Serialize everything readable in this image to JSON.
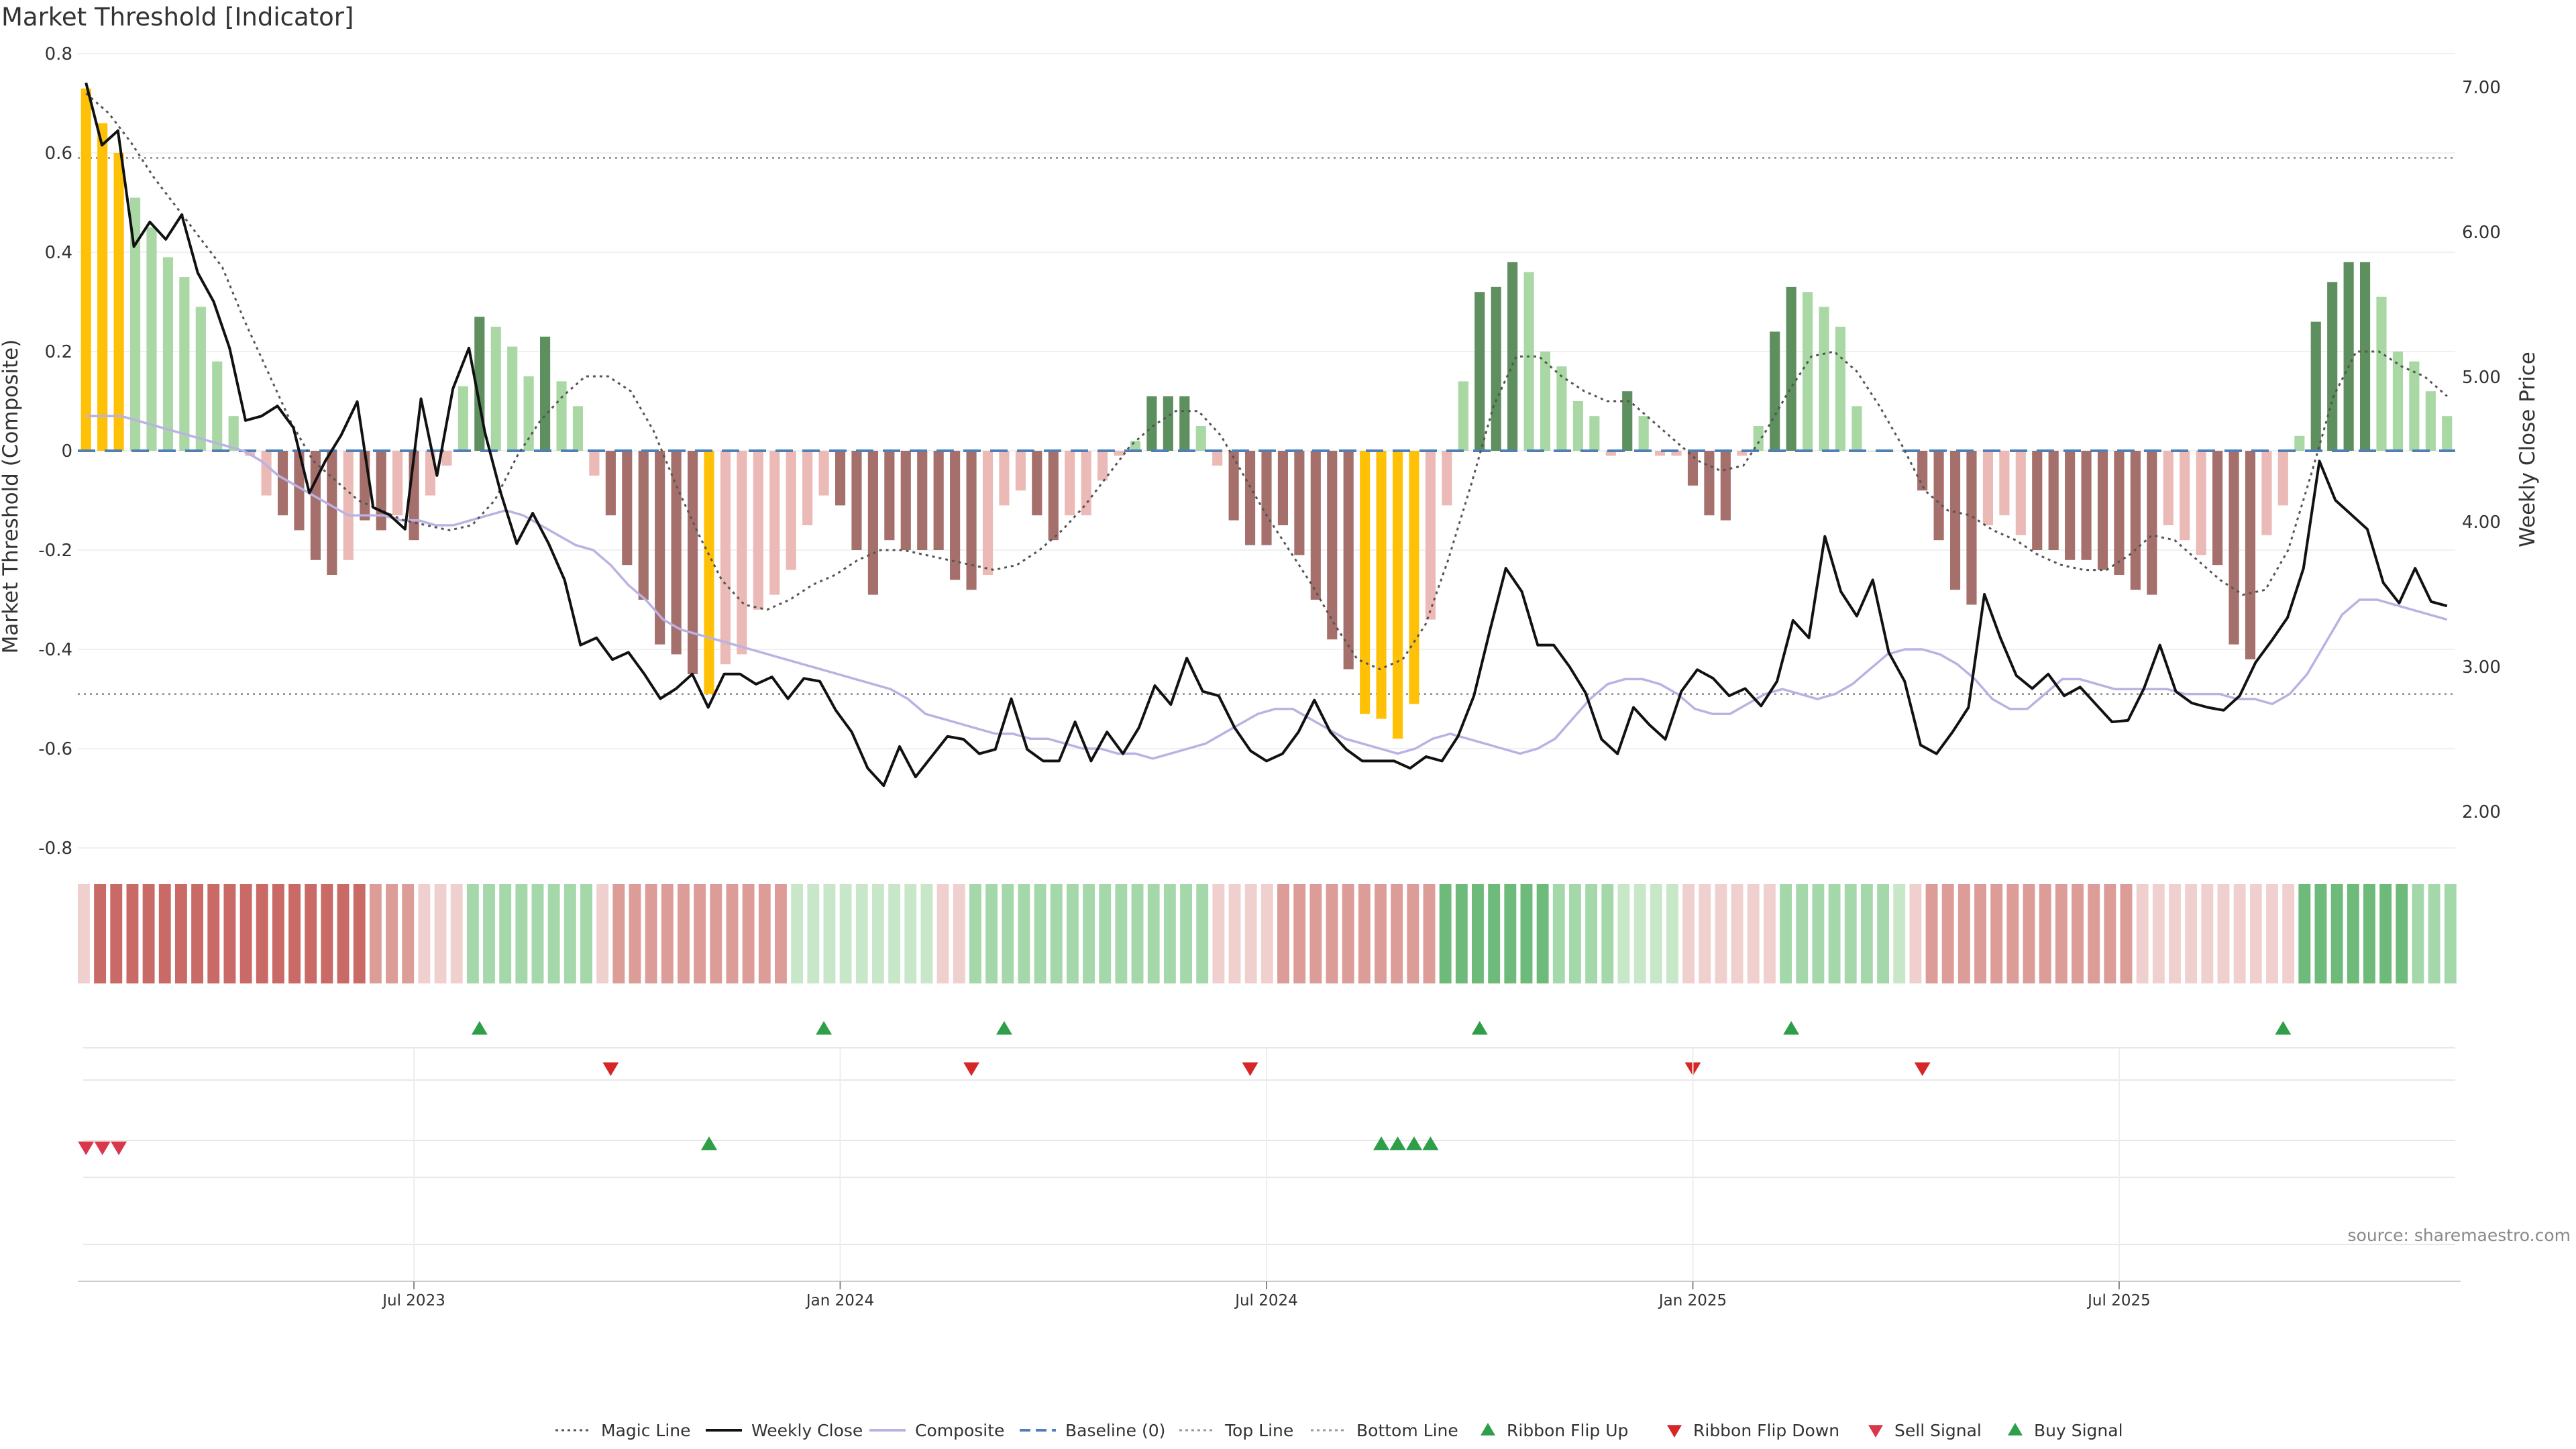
{
  "chart_data": {
    "type": "bar",
    "title": "Market Threshold [Indicator]",
    "ylabel_left": "Market Threshold (Composite)",
    "ylabel_right": "Weekly Close Price",
    "left_ylim": [
      -0.85,
      0.8
    ],
    "right_ylim": [
      1.6,
      7.2
    ],
    "left_ticks": [
      "0.8",
      "0.6",
      "0.4",
      "0.2",
      "0",
      "-0.2",
      "-0.4",
      "-0.6",
      "-0.8"
    ],
    "right_ticks": [
      "7.00",
      "6.00",
      "5.00",
      "4.00",
      "3.00",
      "2.00"
    ],
    "x_ticks": [
      {
        "label": "Jul 2023",
        "index": 20
      },
      {
        "label": "Jan 2024",
        "index": 46
      },
      {
        "label": "Jul 2024",
        "index": 72
      },
      {
        "label": "Jan 2025",
        "index": 98
      },
      {
        "label": "Jul 2025",
        "index": 124
      }
    ],
    "top_line": 0.59,
    "bottom_line": -0.49,
    "source": "source: sharemaestro.com",
    "colors": {
      "yellow": "#FFC107",
      "light_green": "#A9D8A4",
      "dark_green": "#5E8F5E",
      "light_red": "#EBBAB6",
      "dark_red": "#A56F6C",
      "weekly_close": "#111111",
      "composite": "#B9B2E2",
      "magic_line": "#555555",
      "baseline": "#4F7FB5",
      "ribbon_flip_up": "#2E9E48",
      "ribbon_flip_down": "#D62728",
      "sell_signal": "#D9384C",
      "buy_signal": "#2E9E48"
    },
    "composite_bars": [
      {
        "v": 0.73,
        "c": "Y"
      },
      {
        "v": 0.66,
        "c": "Y"
      },
      {
        "v": 0.6,
        "c": "Y"
      },
      {
        "v": 0.51,
        "c": "LG"
      },
      {
        "v": 0.45,
        "c": "LG"
      },
      {
        "v": 0.39,
        "c": "LG"
      },
      {
        "v": 0.35,
        "c": "LG"
      },
      {
        "v": 0.29,
        "c": "LG"
      },
      {
        "v": 0.18,
        "c": "LG"
      },
      {
        "v": 0.07,
        "c": "LG"
      },
      {
        "v": -0.01,
        "c": "LR"
      },
      {
        "v": -0.09,
        "c": "LR"
      },
      {
        "v": -0.13,
        "c": "DR"
      },
      {
        "v": -0.16,
        "c": "DR"
      },
      {
        "v": -0.22,
        "c": "DR"
      },
      {
        "v": -0.25,
        "c": "DR"
      },
      {
        "v": -0.22,
        "c": "LR"
      },
      {
        "v": -0.14,
        "c": "DR"
      },
      {
        "v": -0.16,
        "c": "DR"
      },
      {
        "v": -0.13,
        "c": "LR"
      },
      {
        "v": -0.18,
        "c": "DR"
      },
      {
        "v": -0.09,
        "c": "LR"
      },
      {
        "v": -0.03,
        "c": "LR"
      },
      {
        "v": 0.13,
        "c": "LG"
      },
      {
        "v": 0.27,
        "c": "DG"
      },
      {
        "v": 0.25,
        "c": "LG"
      },
      {
        "v": 0.21,
        "c": "LG"
      },
      {
        "v": 0.15,
        "c": "LG"
      },
      {
        "v": 0.23,
        "c": "DG"
      },
      {
        "v": 0.14,
        "c": "LG"
      },
      {
        "v": 0.09,
        "c": "LG"
      },
      {
        "v": -0.05,
        "c": "LR"
      },
      {
        "v": -0.13,
        "c": "DR"
      },
      {
        "v": -0.23,
        "c": "DR"
      },
      {
        "v": -0.3,
        "c": "DR"
      },
      {
        "v": -0.39,
        "c": "DR"
      },
      {
        "v": -0.41,
        "c": "DR"
      },
      {
        "v": -0.45,
        "c": "DR"
      },
      {
        "v": -0.49,
        "c": "Y"
      },
      {
        "v": -0.43,
        "c": "LR"
      },
      {
        "v": -0.41,
        "c": "LR"
      },
      {
        "v": -0.32,
        "c": "LR"
      },
      {
        "v": -0.29,
        "c": "LR"
      },
      {
        "v": -0.24,
        "c": "LR"
      },
      {
        "v": -0.15,
        "c": "LR"
      },
      {
        "v": -0.09,
        "c": "LR"
      },
      {
        "v": -0.11,
        "c": "DR"
      },
      {
        "v": -0.2,
        "c": "DR"
      },
      {
        "v": -0.29,
        "c": "DR"
      },
      {
        "v": -0.18,
        "c": "DR"
      },
      {
        "v": -0.2,
        "c": "DR"
      },
      {
        "v": -0.2,
        "c": "DR"
      },
      {
        "v": -0.2,
        "c": "DR"
      },
      {
        "v": -0.26,
        "c": "DR"
      },
      {
        "v": -0.28,
        "c": "DR"
      },
      {
        "v": -0.25,
        "c": "LR"
      },
      {
        "v": -0.11,
        "c": "LR"
      },
      {
        "v": -0.08,
        "c": "LR"
      },
      {
        "v": -0.13,
        "c": "DR"
      },
      {
        "v": -0.18,
        "c": "DR"
      },
      {
        "v": -0.13,
        "c": "LR"
      },
      {
        "v": -0.13,
        "c": "LR"
      },
      {
        "v": -0.06,
        "c": "LR"
      },
      {
        "v": -0.01,
        "c": "LR"
      },
      {
        "v": 0.02,
        "c": "LG"
      },
      {
        "v": 0.11,
        "c": "DG"
      },
      {
        "v": 0.11,
        "c": "DG"
      },
      {
        "v": 0.11,
        "c": "DG"
      },
      {
        "v": 0.05,
        "c": "LG"
      },
      {
        "v": -0.03,
        "c": "LR"
      },
      {
        "v": -0.14,
        "c": "DR"
      },
      {
        "v": -0.19,
        "c": "DR"
      },
      {
        "v": -0.19,
        "c": "DR"
      },
      {
        "v": -0.15,
        "c": "DR"
      },
      {
        "v": -0.21,
        "c": "DR"
      },
      {
        "v": -0.3,
        "c": "DR"
      },
      {
        "v": -0.38,
        "c": "DR"
      },
      {
        "v": -0.44,
        "c": "DR"
      },
      {
        "v": -0.53,
        "c": "Y"
      },
      {
        "v": -0.54,
        "c": "Y"
      },
      {
        "v": -0.58,
        "c": "Y"
      },
      {
        "v": -0.51,
        "c": "Y"
      },
      {
        "v": -0.34,
        "c": "LR"
      },
      {
        "v": -0.11,
        "c": "LR"
      },
      {
        "v": 0.14,
        "c": "LG"
      },
      {
        "v": 0.32,
        "c": "DG"
      },
      {
        "v": 0.33,
        "c": "DG"
      },
      {
        "v": 0.38,
        "c": "DG"
      },
      {
        "v": 0.36,
        "c": "LG"
      },
      {
        "v": 0.2,
        "c": "LG"
      },
      {
        "v": 0.17,
        "c": "LG"
      },
      {
        "v": 0.1,
        "c": "LG"
      },
      {
        "v": 0.07,
        "c": "LG"
      },
      {
        "v": -0.01,
        "c": "LR"
      },
      {
        "v": 0.12,
        "c": "DG"
      },
      {
        "v": 0.07,
        "c": "LG"
      },
      {
        "v": -0.01,
        "c": "LR"
      },
      {
        "v": -0.01,
        "c": "LR"
      },
      {
        "v": -0.07,
        "c": "DR"
      },
      {
        "v": -0.13,
        "c": "DR"
      },
      {
        "v": -0.14,
        "c": "DR"
      },
      {
        "v": -0.01,
        "c": "LR"
      },
      {
        "v": 0.05,
        "c": "LG"
      },
      {
        "v": 0.24,
        "c": "DG"
      },
      {
        "v": 0.33,
        "c": "DG"
      },
      {
        "v": 0.32,
        "c": "LG"
      },
      {
        "v": 0.29,
        "c": "LG"
      },
      {
        "v": 0.25,
        "c": "LG"
      },
      {
        "v": 0.09,
        "c": "LG"
      },
      {
        "v": 0.0,
        "c": "LG"
      },
      {
        "v": 0.0,
        "c": "LG"
      },
      {
        "v": 0.0,
        "c": "LG"
      },
      {
        "v": -0.08,
        "c": "DR"
      },
      {
        "v": -0.18,
        "c": "DR"
      },
      {
        "v": -0.28,
        "c": "DR"
      },
      {
        "v": -0.31,
        "c": "DR"
      },
      {
        "v": -0.15,
        "c": "LR"
      },
      {
        "v": -0.13,
        "c": "LR"
      },
      {
        "v": -0.17,
        "c": "LR"
      },
      {
        "v": -0.2,
        "c": "DR"
      },
      {
        "v": -0.2,
        "c": "DR"
      },
      {
        "v": -0.22,
        "c": "DR"
      },
      {
        "v": -0.22,
        "c": "DR"
      },
      {
        "v": -0.24,
        "c": "DR"
      },
      {
        "v": -0.25,
        "c": "DR"
      },
      {
        "v": -0.28,
        "c": "DR"
      },
      {
        "v": -0.29,
        "c": "DR"
      },
      {
        "v": -0.15,
        "c": "LR"
      },
      {
        "v": -0.18,
        "c": "LR"
      },
      {
        "v": -0.21,
        "c": "LR"
      },
      {
        "v": -0.23,
        "c": "DR"
      },
      {
        "v": -0.39,
        "c": "DR"
      },
      {
        "v": -0.42,
        "c": "DR"
      },
      {
        "v": -0.17,
        "c": "LR"
      },
      {
        "v": -0.11,
        "c": "LR"
      },
      {
        "v": 0.03,
        "c": "LG"
      },
      {
        "v": 0.26,
        "c": "DG"
      },
      {
        "v": 0.34,
        "c": "DG"
      },
      {
        "v": 0.38,
        "c": "DG"
      },
      {
        "v": 0.38,
        "c": "DG"
      },
      {
        "v": 0.31,
        "c": "LG"
      },
      {
        "v": 0.2,
        "c": "LG"
      },
      {
        "v": 0.18,
        "c": "LG"
      },
      {
        "v": 0.12,
        "c": "LG"
      },
      {
        "v": 0.07,
        "c": "LG"
      }
    ],
    "weekly_close": [
      7.03,
      6.6,
      6.7,
      5.9,
      6.07,
      5.95,
      6.12,
      5.72,
      5.52,
      5.2,
      4.7,
      4.73,
      4.8,
      4.65,
      4.2,
      4.42,
      4.6,
      4.83,
      4.1,
      4.05,
      3.95,
      4.85,
      4.32,
      4.92,
      5.2,
      4.62,
      4.2,
      3.85,
      4.06,
      3.85,
      3.6,
      3.15,
      3.2,
      3.05,
      3.1,
      2.95,
      2.78,
      2.85,
      2.95,
      2.72,
      2.95,
      2.95,
      2.88,
      2.93,
      2.78,
      2.92,
      2.9,
      2.7,
      2.55,
      2.3,
      2.18,
      2.45,
      2.24,
      2.38,
      2.52,
      2.5,
      2.4,
      2.43,
      2.78,
      2.43,
      2.35,
      2.35,
      2.62,
      2.35,
      2.55,
      2.4,
      2.58,
      2.87,
      2.74,
      3.06,
      2.83,
      2.8,
      2.58,
      2.42,
      2.35,
      2.4,
      2.55,
      2.77,
      2.55,
      2.43,
      2.35,
      2.35,
      2.35,
      2.3,
      2.38,
      2.35,
      2.52,
      2.8,
      3.25,
      3.68,
      3.52,
      3.15,
      3.15,
      3.0,
      2.82,
      2.5,
      2.4,
      2.72,
      2.6,
      2.5,
      2.83,
      2.98,
      2.92,
      2.8,
      2.85,
      2.73,
      2.9,
      3.32,
      3.2,
      3.9,
      3.52,
      3.35,
      3.6,
      3.1,
      2.9,
      2.46,
      2.4,
      2.55,
      2.72,
      3.5,
      3.2,
      2.94,
      2.85,
      2.95,
      2.8,
      2.86,
      2.74,
      2.62,
      2.63,
      2.85,
      3.15,
      2.83,
      2.75,
      2.72,
      2.7,
      2.8,
      3.03,
      3.18,
      3.34,
      3.68,
      4.42,
      4.15,
      4.05,
      3.95,
      3.58,
      3.44,
      3.68,
      3.45,
      3.42
    ],
    "composite_line": [
      0.07,
      0.07,
      0.07,
      0.06,
      0.05,
      0.04,
      0.03,
      0.02,
      0.01,
      0.0,
      -0.02,
      -0.05,
      -0.07,
      -0.09,
      -0.11,
      -0.13,
      -0.13,
      -0.13,
      -0.14,
      -0.14,
      -0.15,
      -0.15,
      -0.14,
      -0.13,
      -0.12,
      -0.13,
      -0.15,
      -0.17,
      -0.19,
      -0.2,
      -0.23,
      -0.27,
      -0.3,
      -0.34,
      -0.36,
      -0.37,
      -0.38,
      -0.39,
      -0.4,
      -0.41,
      -0.42,
      -0.43,
      -0.44,
      -0.45,
      -0.46,
      -0.47,
      -0.48,
      -0.5,
      -0.53,
      -0.54,
      -0.55,
      -0.56,
      -0.57,
      -0.57,
      -0.58,
      -0.58,
      -0.59,
      -0.6,
      -0.6,
      -0.61,
      -0.61,
      -0.62,
      -0.61,
      -0.6,
      -0.59,
      -0.57,
      -0.55,
      -0.53,
      -0.52,
      -0.52,
      -0.54,
      -0.56,
      -0.58,
      -0.59,
      -0.6,
      -0.61,
      -0.6,
      -0.58,
      -0.57,
      -0.58,
      -0.59,
      -0.6,
      -0.61,
      -0.6,
      -0.58,
      -0.54,
      -0.5,
      -0.47,
      -0.46,
      -0.46,
      -0.47,
      -0.49,
      -0.52,
      -0.53,
      -0.53,
      -0.51,
      -0.49,
      -0.48,
      -0.49,
      -0.5,
      -0.49,
      -0.47,
      -0.44,
      -0.41,
      -0.4,
      -0.4,
      -0.41,
      -0.43,
      -0.46,
      -0.5,
      -0.52,
      -0.52,
      -0.49,
      -0.46,
      -0.46,
      -0.47,
      -0.48,
      -0.48,
      -0.48,
      -0.48,
      -0.49,
      -0.49,
      -0.49,
      -0.5,
      -0.5,
      -0.51,
      -0.49,
      -0.45,
      -0.39,
      -0.33,
      -0.3,
      -0.3,
      -0.31,
      -0.32,
      -0.33,
      -0.34
    ],
    "magic_line": [
      0.72,
      0.68,
      0.62,
      0.55,
      0.49,
      0.43,
      0.37,
      0.26,
      0.16,
      0.06,
      -0.02,
      -0.06,
      -0.1,
      -0.12,
      -0.14,
      -0.15,
      -0.16,
      -0.15,
      -0.1,
      -0.01,
      0.06,
      0.11,
      0.15,
      0.15,
      0.12,
      0.04,
      -0.07,
      -0.17,
      -0.26,
      -0.31,
      -0.32,
      -0.3,
      -0.27,
      -0.25,
      -0.22,
      -0.2,
      -0.2,
      -0.21,
      -0.22,
      -0.23,
      -0.24,
      -0.23,
      -0.2,
      -0.16,
      -0.11,
      -0.05,
      0.01,
      0.05,
      0.08,
      0.08,
      0.03,
      -0.05,
      -0.13,
      -0.2,
      -0.27,
      -0.35,
      -0.42,
      -0.44,
      -0.42,
      -0.35,
      -0.22,
      -0.07,
      0.09,
      0.19,
      0.19,
      0.15,
      0.12,
      0.1,
      0.1,
      0.06,
      0.02,
      -0.02,
      -0.04,
      -0.03,
      0.04,
      0.12,
      0.19,
      0.2,
      0.16,
      0.09,
      0.01,
      -0.08,
      -0.12,
      -0.13,
      -0.16,
      -0.18,
      -0.21,
      -0.23,
      -0.24,
      -0.24,
      -0.21,
      -0.17,
      -0.18,
      -0.22,
      -0.26,
      -0.29,
      -0.28,
      -0.2,
      -0.05,
      0.11,
      0.2,
      0.2,
      0.17,
      0.15,
      0.11
    ],
    "ribbon": [
      "LR",
      "DR",
      "DR",
      "DR",
      "DR",
      "DR",
      "DR",
      "DR",
      "DR",
      "DR",
      "DR",
      "DR",
      "DR",
      "DR",
      "DR",
      "DR",
      "DR",
      "DR",
      "MR",
      "MR",
      "MR",
      "LR",
      "LR",
      "LR",
      "MG",
      "MG",
      "MG",
      "MG",
      "MG",
      "MG",
      "MG",
      "MG",
      "LR",
      "MR",
      "MR",
      "MR",
      "MR",
      "MR",
      "MR",
      "MR",
      "MR",
      "MR",
      "MR",
      "MR",
      "LG",
      "LG",
      "LG",
      "LG",
      "LG",
      "LG",
      "LG",
      "LG",
      "LG",
      "LR",
      "LR",
      "MG",
      "MG",
      "MG",
      "MG",
      "MG",
      "MG",
      "MG",
      "MG",
      "MG",
      "MG",
      "MG",
      "MG",
      "MG",
      "MG",
      "MG",
      "LR",
      "LR",
      "LR",
      "LR",
      "MR",
      "MR",
      "MR",
      "MR",
      "MR",
      "MR",
      "MR",
      "MR",
      "MR",
      "MR",
      "DG",
      "DG",
      "DG",
      "DG",
      "DG",
      "DG",
      "DG",
      "MG",
      "MG",
      "MG",
      "MG",
      "LG",
      "LG",
      "LG",
      "LG",
      "LR",
      "LR",
      "LR",
      "LR",
      "LR",
      "LR",
      "MG",
      "MG",
      "MG",
      "MG",
      "MG",
      "MG",
      "MG",
      "LG",
      "LR",
      "MR",
      "MR",
      "MR",
      "MR",
      "MR",
      "MR",
      "MR",
      "MR",
      "MR",
      "MR",
      "MR",
      "MR",
      "MR",
      "LR",
      "LR",
      "LR",
      "LR",
      "LR",
      "LR",
      "LR",
      "LR",
      "LR",
      "LR",
      "DG",
      "DG",
      "DG",
      "DG",
      "DG",
      "DG",
      "DG",
      "MG",
      "MG",
      "MG"
    ],
    "ribbon_flip_up": [
      24,
      45,
      56,
      85,
      104,
      134
    ],
    "ribbon_flip_down": [
      32,
      54,
      71,
      98,
      112
    ],
    "sell_signal": [
      0,
      1,
      2
    ],
    "buy_signal": [
      38,
      79,
      80,
      81,
      82
    ]
  },
  "legend": [
    {
      "label": "Magic Line",
      "icon": "dotted-line-icon"
    },
    {
      "label": "Weekly Close",
      "icon": "solid-line-icon"
    },
    {
      "label": "Composite",
      "icon": "lavender-line-icon"
    },
    {
      "label": "Baseline (0)",
      "icon": "dashed-line-icon"
    },
    {
      "label": "Top Line",
      "icon": "dotted-line-icon"
    },
    {
      "label": "Bottom Line",
      "icon": "dotted-line-icon"
    },
    {
      "label": "Ribbon Flip Up",
      "icon": "triangle-up-icon"
    },
    {
      "label": "Ribbon Flip Down",
      "icon": "triangle-down-icon"
    },
    {
      "label": "Sell Signal",
      "icon": "triangle-down-icon"
    },
    {
      "label": "Buy Signal",
      "icon": "triangle-up-icon"
    }
  ]
}
